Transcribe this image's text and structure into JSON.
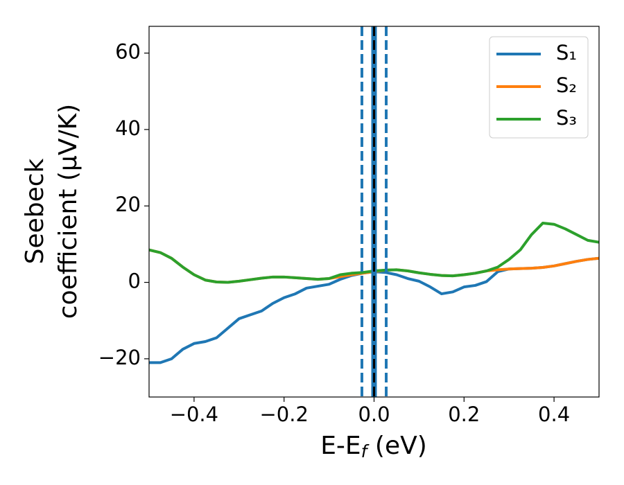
{
  "chart_data": {
    "type": "line",
    "xlabel": [
      "E-E",
      "f",
      " (eV)"
    ],
    "ylabel": [
      "Seebeck",
      "coefficient  (μV/K)"
    ],
    "x": [
      -0.5,
      -0.475,
      -0.45,
      -0.425,
      -0.4,
      -0.375,
      -0.35,
      -0.325,
      -0.3,
      -0.275,
      -0.25,
      -0.225,
      -0.2,
      -0.175,
      -0.15,
      -0.125,
      -0.1,
      -0.075,
      -0.05,
      -0.025,
      0,
      0.025,
      0.05,
      0.075,
      0.1,
      0.125,
      0.15,
      0.175,
      0.2,
      0.225,
      0.25,
      0.275,
      0.3,
      0.325,
      0.35,
      0.375,
      0.4,
      0.425,
      0.45,
      0.475,
      0.5
    ],
    "series": [
      {
        "name": "S₁",
        "color": "#1f77b4",
        "values": [
          -21,
          -21,
          -20,
          -17.5,
          -16,
          -15.5,
          -14.5,
          -12,
          -9.5,
          -8.5,
          -7.5,
          -5.5,
          -4,
          -3,
          -1.5,
          -1,
          -0.5,
          0.8,
          1.8,
          2.4,
          2.8,
          2.6,
          2,
          1,
          0.3,
          -1.2,
          -3,
          -2.5,
          -1.2,
          -0.8,
          0.2,
          2.8,
          3.5,
          3.6,
          3.7,
          3.9,
          4.3,
          4.9,
          5.5,
          6,
          6.3
        ]
      },
      {
        "name": "S₂",
        "color": "#ff7f0e",
        "values": [
          8.5,
          7.8,
          6.3,
          4,
          2,
          0.6,
          0.1,
          0,
          0.3,
          0.7,
          1.1,
          1.4,
          1.4,
          1.2,
          1,
          0.8,
          1,
          1.5,
          2,
          2.4,
          2.8,
          3.2,
          3.3,
          3,
          2.5,
          2.1,
          1.8,
          1.7,
          2,
          2.4,
          3,
          3.3,
          3.5,
          3.6,
          3.7,
          3.9,
          4.3,
          4.9,
          5.5,
          6,
          6.3
        ]
      },
      {
        "name": "S₃",
        "color": "#2ca02c",
        "values": [
          8.5,
          7.8,
          6.3,
          4,
          2,
          0.6,
          0.1,
          0,
          0.3,
          0.7,
          1.1,
          1.4,
          1.4,
          1.2,
          1,
          0.8,
          1,
          2,
          2.4,
          2.6,
          3,
          3.2,
          3.3,
          3,
          2.5,
          2.1,
          1.8,
          1.7,
          2,
          2.4,
          3,
          4,
          6,
          8.5,
          12.5,
          15.5,
          15.2,
          14,
          12.5,
          11,
          10.5
        ]
      }
    ],
    "vlines": [
      {
        "x": 0,
        "color": "#1f77b4",
        "dash": false
      },
      {
        "x": 0,
        "color": "#000000",
        "dash": true
      },
      {
        "x": -0.027,
        "color": "#1f77b4",
        "dash": true
      },
      {
        "x": 0.027,
        "color": "#1f77b4",
        "dash": true
      }
    ],
    "xlim": [
      -0.5,
      0.5
    ],
    "ylim": [
      -30,
      67
    ],
    "xticks": [
      {
        "value": -0.4,
        "label": "−0.4"
      },
      {
        "value": -0.2,
        "label": "−0.2"
      },
      {
        "value": 0,
        "label": "0.0"
      },
      0.2,
      0.4
    ],
    "yticks": [
      {
        "value": -20,
        "label": "−20"
      },
      0,
      20,
      40,
      60
    ],
    "legend": "upper right"
  }
}
